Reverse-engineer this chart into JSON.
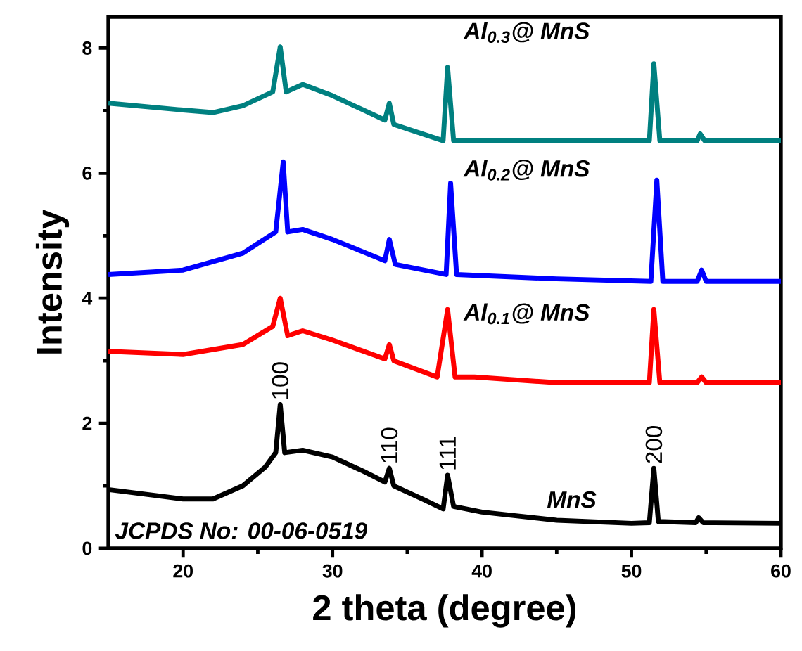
{
  "chart_data": {
    "type": "line",
    "xlabel": "2 theta (degree)",
    "ylabel": "Intensity",
    "xlim": [
      15,
      60
    ],
    "ylim": [
      0,
      8.5
    ],
    "xticks": [
      20,
      30,
      40,
      50,
      60
    ],
    "yticks": [
      0,
      2,
      4,
      6,
      8
    ],
    "grid": false,
    "legend": false,
    "marker": "none",
    "line_style": "solid",
    "series": [
      {
        "name": "MnS",
        "color": "#000000",
        "x": [
          15,
          18,
          20,
          22,
          24,
          25.5,
          26.2,
          26.5,
          26.8,
          28,
          30,
          32,
          33.5,
          33.8,
          34.1,
          36,
          37.4,
          37.7,
          38.1,
          40,
          45,
          50,
          51.2,
          51.5,
          51.8,
          54.3,
          54.5,
          54.8,
          60
        ],
        "values": [
          0.94,
          0.85,
          0.79,
          0.79,
          1.0,
          1.3,
          1.53,
          2.3,
          1.53,
          1.57,
          1.46,
          1.24,
          1.06,
          1.28,
          1.0,
          0.79,
          0.63,
          1.17,
          0.67,
          0.58,
          0.45,
          0.4,
          0.41,
          1.28,
          0.43,
          0.41,
          0.49,
          0.41,
          0.4
        ]
      },
      {
        "name": "Al$_{0.1}$@ MnS",
        "color": "#ff0000",
        "x": [
          15,
          20,
          24,
          26,
          26.5,
          27,
          28,
          30,
          33.5,
          33.8,
          34.1,
          37,
          37.7,
          38.2,
          39.5,
          45,
          51.2,
          51.5,
          51.9,
          54.4,
          54.7,
          55,
          60
        ],
        "values": [
          3.15,
          3.1,
          3.26,
          3.55,
          4.0,
          3.4,
          3.48,
          3.33,
          3.03,
          3.26,
          3.0,
          2.74,
          3.82,
          2.74,
          2.74,
          2.65,
          2.65,
          3.82,
          2.65,
          2.65,
          2.74,
          2.65,
          2.65
        ]
      },
      {
        "name": "Al$_{0.2}$@ MnS",
        "color": "#0000ff",
        "x": [
          15,
          20,
          24,
          26.2,
          26.7,
          27,
          28,
          30,
          33.5,
          33.8,
          34.2,
          37.6,
          37.9,
          38.3,
          45,
          51.3,
          51.7,
          52.1,
          54.4,
          54.7,
          55,
          60
        ],
        "values": [
          4.38,
          4.45,
          4.72,
          5.06,
          6.18,
          5.06,
          5.1,
          4.94,
          4.6,
          4.94,
          4.54,
          4.38,
          5.84,
          4.38,
          4.31,
          4.27,
          5.89,
          4.27,
          4.27,
          4.45,
          4.27,
          4.27
        ]
      },
      {
        "name": "Al$_{0.3}$@ MnS",
        "color": "#008080",
        "x": [
          15,
          20,
          22,
          24,
          26,
          26.5,
          26.9,
          28,
          30,
          33.5,
          33.8,
          34.1,
          37.4,
          37.7,
          38.1,
          45,
          51.2,
          51.5,
          51.9,
          54.4,
          54.6,
          54.9,
          60
        ],
        "values": [
          7.12,
          7.01,
          6.97,
          7.08,
          7.3,
          8.02,
          7.3,
          7.42,
          7.24,
          6.85,
          7.12,
          6.78,
          6.52,
          7.69,
          6.52,
          6.52,
          6.52,
          7.75,
          6.52,
          6.52,
          6.63,
          6.52,
          6.52
        ]
      }
    ],
    "annotations": [
      {
        "text": "100",
        "x": 26.5,
        "y": 2.3
      },
      {
        "text": "110",
        "x": 33.8,
        "y": 1.28
      },
      {
        "text": "111",
        "x": 37.7,
        "y": 1.17
      },
      {
        "text": "200",
        "x": 51.5,
        "y": 1.28
      },
      "JCPDS No: 00-06-0519"
    ]
  }
}
